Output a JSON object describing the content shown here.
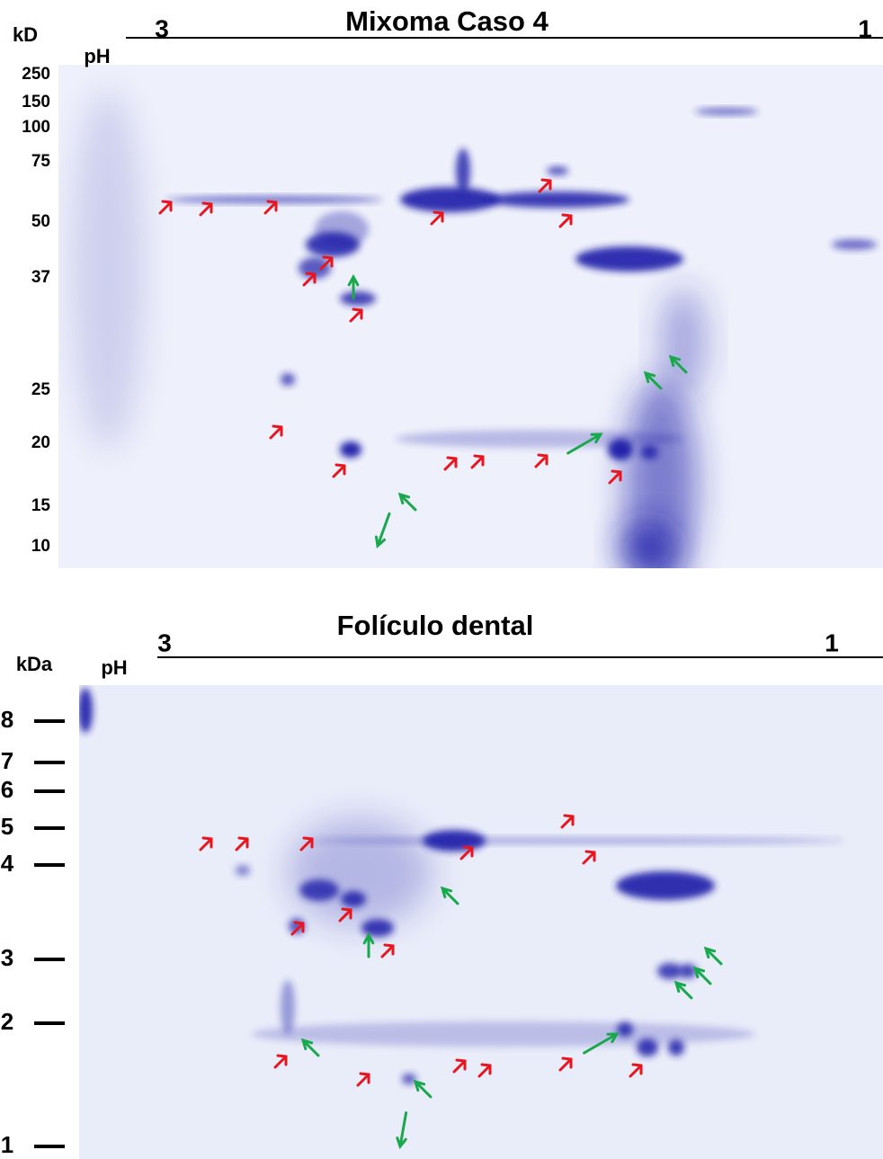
{
  "panels": [
    {
      "title": "Mixoma Caso 4",
      "ph_left": "3",
      "ph_right": "1",
      "unit": "kD",
      "ph_label": "pH",
      "markers": [
        "250",
        "150",
        "100",
        "75",
        "50",
        "37",
        "25",
        "20",
        "15",
        "10"
      ]
    },
    {
      "title": "Folículo dental",
      "ph_left": "3",
      "ph_right": "1",
      "unit": "kDa",
      "ph_label": "pH",
      "markers": [
        "8",
        "7",
        "6",
        "5",
        "4",
        "3",
        "2",
        "1"
      ]
    }
  ]
}
